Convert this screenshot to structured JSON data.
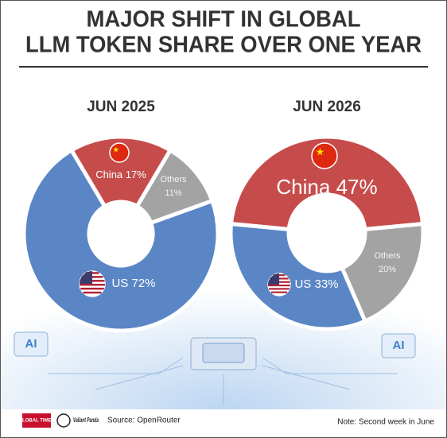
{
  "header": {
    "title_lines": [
      "MAJOR SHIFT IN GLOBAL",
      "LLM TOKEN SHARE OVER ONE YEAR"
    ]
  },
  "chart_data": [
    {
      "type": "donut",
      "title": "JUN 2025",
      "categories": [
        "China",
        "Others",
        "US"
      ],
      "values": [
        17,
        11,
        72
      ],
      "value_labels": [
        "17%",
        "11%",
        "72%"
      ],
      "colors": [
        "#c64c4c",
        "#a3a3a3",
        "#5a86c6"
      ]
    },
    {
      "type": "donut",
      "title": "JUN 2026",
      "categories": [
        "China",
        "Others",
        "US"
      ],
      "values": [
        47,
        20,
        33
      ],
      "value_labels": [
        "47%",
        "20%",
        "33%"
      ],
      "colors": [
        "#c64c4c",
        "#a3a3a3",
        "#5a86c6"
      ]
    }
  ],
  "decor": {
    "chip_labels": [
      "AI",
      "AI"
    ]
  },
  "footer": {
    "logos": [
      "GLOBAL TIMES",
      "Valiant Panda"
    ],
    "source": "Source: OpenRouter",
    "note": "Note: Second week in June"
  }
}
